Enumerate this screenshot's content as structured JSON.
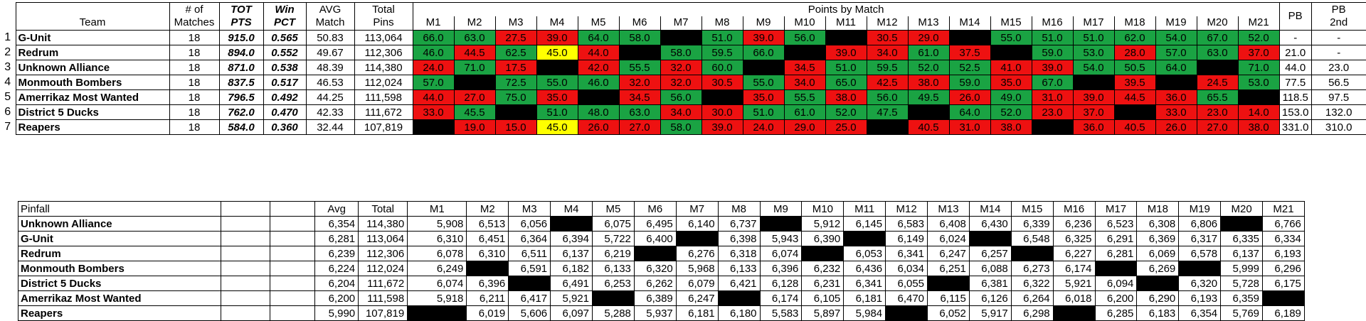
{
  "standings": {
    "headers": {
      "team": "Team",
      "matches": [
        "# of",
        "Matches"
      ],
      "tot": [
        "TOT",
        "PTS"
      ],
      "win": [
        "Win",
        "PCT"
      ],
      "avg": [
        "AVG",
        "Match"
      ],
      "total": [
        "Total",
        "Pins"
      ],
      "points_by_match": "Points by Match",
      "pb": "PB",
      "pb2": [
        "PB",
        "2nd"
      ],
      "matches_list": [
        "M1",
        "M2",
        "M3",
        "M4",
        "M5",
        "M6",
        "M7",
        "M8",
        "M9",
        "M10",
        "M11",
        "M12",
        "M13",
        "M14",
        "M15",
        "M16",
        "M17",
        "M18",
        "M19",
        "M20",
        "M21"
      ]
    },
    "rows": [
      {
        "rank": "1",
        "team": "G-Unit",
        "matches": "18",
        "tot": "915.0",
        "win": "0.565",
        "avg": "50.83",
        "total": "113,064",
        "points": [
          "66.0",
          "63.0",
          "27.5",
          "39.0",
          "64.0",
          "58.0",
          "",
          "51.0",
          "39.0",
          "56.0",
          "",
          "30.5",
          "29.0",
          "",
          "55.0",
          "51.0",
          "51.0",
          "62.0",
          "54.0",
          "67.0",
          "52.0"
        ],
        "colors": [
          "g",
          "g",
          "r",
          "r",
          "g",
          "g",
          "k",
          "g",
          "r",
          "g",
          "k",
          "r",
          "r",
          "k",
          "g",
          "g",
          "g",
          "g",
          "g",
          "g",
          "g"
        ],
        "pb": "-",
        "pb2": "-"
      },
      {
        "rank": "2",
        "team": "Redrum",
        "matches": "18",
        "tot": "894.0",
        "win": "0.552",
        "avg": "49.67",
        "total": "112,306",
        "points": [
          "46.0",
          "44.5",
          "62.5",
          "45.0",
          "44.0",
          "",
          "58.0",
          "59.5",
          "66.0",
          "",
          "39.0",
          "34.0",
          "61.0",
          "37.5",
          "",
          "59.0",
          "53.0",
          "28.0",
          "57.0",
          "63.0",
          "37.0"
        ],
        "colors": [
          "g",
          "r",
          "g",
          "y",
          "r",
          "k",
          "g",
          "g",
          "g",
          "k",
          "r",
          "r",
          "g",
          "r",
          "k",
          "g",
          "g",
          "r",
          "g",
          "g",
          "r"
        ],
        "pb": "21.0",
        "pb2": "-"
      },
      {
        "rank": "3",
        "team": "Unknown Alliance",
        "matches": "18",
        "tot": "871.0",
        "win": "0.538",
        "avg": "48.39",
        "total": "114,380",
        "points": [
          "24.0",
          "71.0",
          "17.5",
          "",
          "42.0",
          "55.5",
          "32.0",
          "60.0",
          "",
          "34.5",
          "51.0",
          "59.5",
          "52.0",
          "52.5",
          "41.0",
          "39.0",
          "54.0",
          "50.5",
          "64.0",
          "",
          "71.0"
        ],
        "colors": [
          "r",
          "g",
          "r",
          "k",
          "r",
          "g",
          "r",
          "g",
          "k",
          "r",
          "g",
          "g",
          "g",
          "g",
          "r",
          "r",
          "g",
          "g",
          "g",
          "k",
          "g"
        ],
        "pb": "44.0",
        "pb2": "23.0"
      },
      {
        "rank": "4",
        "team": "Monmouth Bombers",
        "matches": "18",
        "tot": "837.5",
        "win": "0.517",
        "avg": "46.53",
        "total": "112,024",
        "points": [
          "57.0",
          "",
          "72.5",
          "55.0",
          "46.0",
          "32.0",
          "32.0",
          "30.5",
          "55.0",
          "34.0",
          "65.0",
          "42.5",
          "38.0",
          "59.0",
          "35.0",
          "67.0",
          "",
          "39.5",
          "",
          "24.5",
          "53.0"
        ],
        "colors": [
          "g",
          "k",
          "g",
          "g",
          "g",
          "r",
          "r",
          "r",
          "g",
          "r",
          "g",
          "r",
          "r",
          "g",
          "r",
          "g",
          "k",
          "r",
          "k",
          "r",
          "g"
        ],
        "pb": "77.5",
        "pb2": "56.5"
      },
      {
        "rank": "5",
        "team": "Amerrikaz Most Wanted",
        "matches": "18",
        "tot": "796.5",
        "win": "0.492",
        "avg": "44.25",
        "total": "111,598",
        "points": [
          "44.0",
          "27.0",
          "75.0",
          "35.0",
          "",
          "34.5",
          "56.0",
          "",
          "35.0",
          "55.5",
          "38.0",
          "56.0",
          "49.5",
          "26.0",
          "49.0",
          "31.0",
          "39.0",
          "44.5",
          "36.0",
          "65.5",
          ""
        ],
        "colors": [
          "r",
          "r",
          "g",
          "r",
          "k",
          "r",
          "g",
          "k",
          "r",
          "g",
          "r",
          "g",
          "g",
          "r",
          "g",
          "r",
          "r",
          "r",
          "r",
          "g",
          "k"
        ],
        "pb": "118.5",
        "pb2": "97.5"
      },
      {
        "rank": "6",
        "team": "District 5 Ducks",
        "matches": "18",
        "tot": "762.0",
        "win": "0.470",
        "avg": "42.33",
        "total": "111,672",
        "points": [
          "33.0",
          "45.5",
          "",
          "51.0",
          "48.0",
          "63.0",
          "34.0",
          "30.0",
          "51.0",
          "61.0",
          "52.0",
          "47.5",
          "",
          "64.0",
          "52.0",
          "23.0",
          "37.0",
          "",
          "33.0",
          "23.0",
          "14.0"
        ],
        "colors": [
          "r",
          "g",
          "k",
          "g",
          "g",
          "g",
          "r",
          "r",
          "g",
          "g",
          "g",
          "g",
          "k",
          "g",
          "g",
          "r",
          "r",
          "k",
          "r",
          "r",
          "r"
        ],
        "pb": "153.0",
        "pb2": "132.0"
      },
      {
        "rank": "7",
        "team": "Reapers",
        "matches": "18",
        "tot": "584.0",
        "win": "0.360",
        "avg": "32.44",
        "total": "107,819",
        "points": [
          "",
          "19.0",
          "15.0",
          "45.0",
          "26.0",
          "27.0",
          "58.0",
          "39.0",
          "24.0",
          "29.0",
          "25.0",
          "",
          "40.5",
          "31.0",
          "38.0",
          "",
          "36.0",
          "40.5",
          "26.0",
          "27.0",
          "38.0"
        ],
        "colors": [
          "k",
          "r",
          "r",
          "y",
          "r",
          "r",
          "g",
          "r",
          "r",
          "r",
          "r",
          "k",
          "r",
          "r",
          "r",
          "k",
          "r",
          "r",
          "r",
          "r",
          "r"
        ],
        "pb": "331.0",
        "pb2": "310.0"
      }
    ]
  },
  "pinfall": {
    "headers": {
      "title": "Pinfall",
      "avg": "Avg",
      "total": "Total",
      "matches_list": [
        "M1",
        "M2",
        "M3",
        "M4",
        "M5",
        "M6",
        "M7",
        "M8",
        "M9",
        "M10",
        "M11",
        "M12",
        "M13",
        "M14",
        "M15",
        "M16",
        "M17",
        "M18",
        "M19",
        "M20",
        "M21"
      ]
    },
    "rows": [
      {
        "team": "Unknown Alliance",
        "avg": "6,354",
        "total": "114,380",
        "scores": [
          "5,908",
          "6,513",
          "6,056",
          "",
          "6,075",
          "6,495",
          "6,140",
          "6,737",
          "",
          "5,912",
          "6,145",
          "6,583",
          "6,408",
          "6,430",
          "6,339",
          "6,236",
          "6,523",
          "6,308",
          "6,806",
          "",
          "6,766"
        ]
      },
      {
        "team": "G-Unit",
        "avg": "6,281",
        "total": "113,064",
        "scores": [
          "6,310",
          "6,451",
          "6,364",
          "6,394",
          "5,722",
          "6,400",
          "",
          "6,398",
          "5,943",
          "6,390",
          "",
          "6,149",
          "6,024",
          "",
          "6,548",
          "6,325",
          "6,291",
          "6,369",
          "6,317",
          "6,335",
          "6,334"
        ]
      },
      {
        "team": "Redrum",
        "avg": "6,239",
        "total": "112,306",
        "scores": [
          "6,078",
          "6,310",
          "6,511",
          "6,137",
          "6,219",
          "",
          "6,276",
          "6,318",
          "6,074",
          "",
          "6,053",
          "6,341",
          "6,247",
          "6,257",
          "",
          "6,227",
          "6,281",
          "6,069",
          "6,578",
          "6,137",
          "6,193"
        ]
      },
      {
        "team": "Monmouth Bombers",
        "avg": "6,224",
        "total": "112,024",
        "scores": [
          "6,249",
          "",
          "6,591",
          "6,182",
          "6,133",
          "6,320",
          "5,968",
          "6,133",
          "6,396",
          "6,232",
          "6,436",
          "6,034",
          "6,251",
          "6,088",
          "6,273",
          "6,174",
          "",
          "6,269",
          "",
          "5,999",
          "6,296"
        ]
      },
      {
        "team": "District 5 Ducks",
        "avg": "6,204",
        "total": "111,672",
        "scores": [
          "6,074",
          "6,396",
          "",
          "6,491",
          "6,253",
          "6,262",
          "6,079",
          "6,421",
          "6,128",
          "6,231",
          "6,341",
          "6,055",
          "",
          "6,381",
          "6,322",
          "5,921",
          "6,094",
          "",
          "6,320",
          "5,728",
          "6,175"
        ]
      },
      {
        "team": "Amerrikaz Most Wanted",
        "avg": "6,200",
        "total": "111,598",
        "scores": [
          "5,918",
          "6,211",
          "6,417",
          "5,921",
          "",
          "6,389",
          "6,247",
          "",
          "6,174",
          "6,105",
          "6,181",
          "6,470",
          "6,115",
          "6,126",
          "6,264",
          "6,018",
          "6,200",
          "6,290",
          "6,193",
          "6,359",
          ""
        ]
      },
      {
        "team": "Reapers",
        "avg": "5,990",
        "total": "107,819",
        "scores": [
          "",
          "6,019",
          "5,606",
          "6,097",
          "5,288",
          "5,937",
          "6,181",
          "6,180",
          "5,583",
          "5,897",
          "5,984",
          "",
          "6,052",
          "5,917",
          "6,298",
          "",
          "6,285",
          "6,183",
          "6,354",
          "5,769",
          "6,189"
        ]
      }
    ]
  }
}
